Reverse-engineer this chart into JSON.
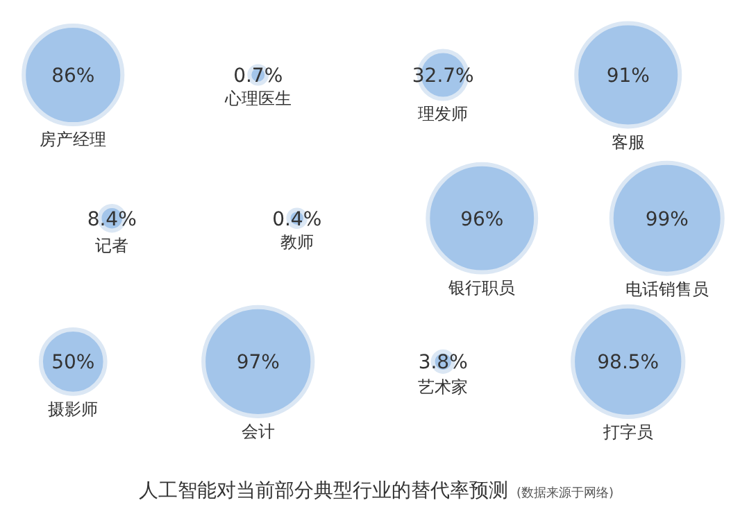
{
  "chart_data": {
    "type": "other",
    "title": "人工智能对当前部分典型行业的替代率预测",
    "annotations": [
      "(数据来源于网络)"
    ],
    "categories": [
      "房产经理",
      "心理医生",
      "理发师",
      "客服",
      "记者",
      "教师",
      "银行职员",
      "电话销售员",
      "摄影师",
      "会计",
      "艺术家",
      "打字员"
    ],
    "values": [
      86,
      0.7,
      32.7,
      91,
      8.4,
      0.4,
      96,
      99,
      50,
      97,
      3.8,
      98.5
    ],
    "value_labels": [
      "86%",
      "0.7%",
      "32.7%",
      "91%",
      "8.4%",
      "0.4%",
      "96%",
      "99%",
      "50%",
      "97%",
      "3.8%",
      "98.5%"
    ],
    "color": "#a3c5ea"
  }
}
